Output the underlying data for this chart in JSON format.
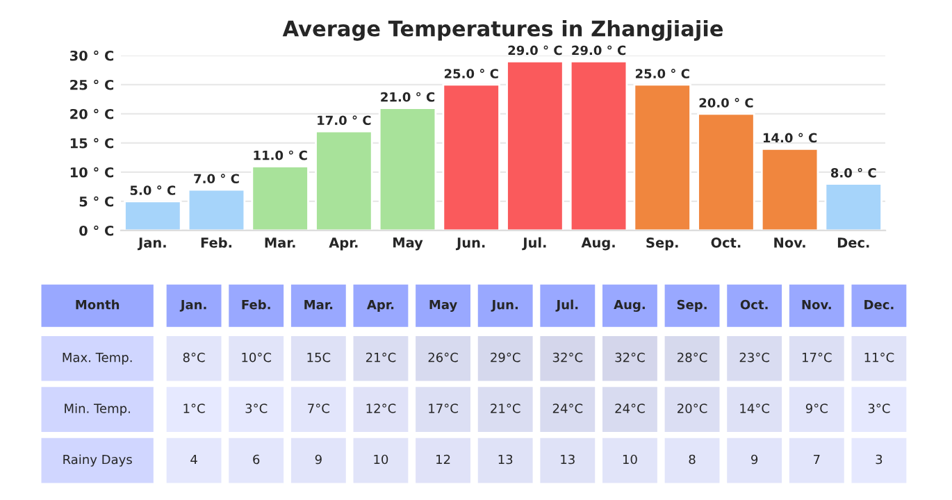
{
  "chart_data": [
    {
      "type": "bar",
      "title": "Average Temperatures in Zhangjiajie",
      "categories": [
        "Jan.",
        "Feb.",
        "Mar.",
        "Apr.",
        "May",
        "Jun.",
        "Jul.",
        "Aug.",
        "Sep.",
        "Oct.",
        "Nov.",
        "Dec."
      ],
      "values": [
        5,
        7,
        11,
        17,
        21,
        25,
        29,
        29,
        25,
        20,
        14,
        8
      ],
      "colors": [
        "#a6d4fa",
        "#a6d4fa",
        "#a8e29a",
        "#a8e29a",
        "#a8e29a",
        "#fa5a5c",
        "#fa5a5c",
        "#fa5a5c",
        "#f0863e",
        "#f0863e",
        "#f0863e",
        "#a6d4fa"
      ],
      "value_labels": [
        "5.0 ° C",
        "7.0 ° C",
        "11.0 ° C",
        "17.0 ° C",
        "21.0 ° C",
        "25.0 ° C",
        "29.0 ° C",
        "29.0 ° C",
        "25.0 ° C",
        "20.0 ° C",
        "14.0 ° C",
        "8.0 ° C"
      ],
      "ylim": [
        0,
        30
      ],
      "yticks": [
        {
          "value": 0,
          "label": "0 ° C"
        },
        {
          "value": 5,
          "label": "5 ° C"
        },
        {
          "value": 10,
          "label": "10 ° C"
        },
        {
          "value": 15,
          "label": "15 ° C"
        },
        {
          "value": 20,
          "label": "20 ° C"
        },
        {
          "value": 25,
          "label": "25 ° C"
        },
        {
          "value": 30,
          "label": "30 ° C"
        }
      ],
      "grid": "y",
      "legend": false
    },
    {
      "type": "heatmap",
      "ylabel": "Month",
      "categories": [
        "Jan.",
        "Feb.",
        "Mar.",
        "Apr.",
        "May",
        "Jun.",
        "Jul.",
        "Aug.",
        "Sep.",
        "Oct.",
        "Nov.",
        "Dec."
      ],
      "y_categories": [
        "Max. Temp.",
        "Min. Temp.",
        "Rainy Days"
      ],
      "cells": [
        [
          8,
          10,
          15,
          21,
          26,
          29,
          32,
          32,
          28,
          23,
          17,
          11
        ],
        [
          1,
          3,
          7,
          12,
          17,
          21,
          24,
          24,
          20,
          14,
          9,
          3
        ],
        [
          4,
          6,
          9,
          10,
          12,
          13,
          13,
          10,
          8,
          9,
          7,
          3
        ]
      ],
      "cell_labels": [
        [
          "8°C",
          "10°C",
          "15C",
          "21°C",
          "26°C",
          "29°C",
          "32°C",
          "32°C",
          "28°C",
          "23°C",
          "17°C",
          "11°C"
        ],
        [
          "1°C",
          "3°C",
          "7°C",
          "12°C",
          "17°C",
          "21°C",
          "24°C",
          "24°C",
          "20°C",
          "14°C",
          "9°C",
          "3°C"
        ],
        [
          "4",
          "6",
          "9",
          "10",
          "12",
          "13",
          "13",
          "10",
          "8",
          "9",
          "7",
          "3"
        ]
      ],
      "colors": [
        "#99a8ff",
        "#d0d6ff",
        "#e6e9ff"
      ]
    }
  ]
}
